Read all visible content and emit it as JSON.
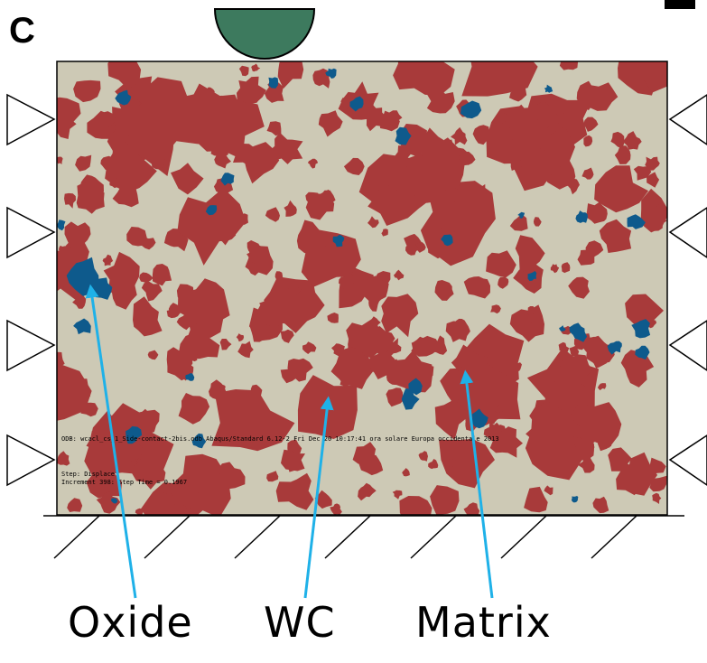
{
  "panel": {
    "letter": "C"
  },
  "labels": {
    "oxide": "Oxide",
    "wc": "WC",
    "matrix": "Matrix"
  },
  "simulation_text": {
    "odb_line": "ODB: wcacl_cs_1_Side-contact-2bis.odb    Abaqus/Standard 6.12-2    Fri Dec 20 10:17:41 ora solare Europa occidentale 2013",
    "step_line": "Step: Displace",
    "increment_line": "Increment    398: Step Time =    0.1967"
  },
  "colors": {
    "matrix": "#cdc9b5",
    "wc": "#a83a3a",
    "oxide": "#0e5a8c",
    "indenter": "#3d7a5e",
    "arrow": "#1fb1e8",
    "outline": "#000000"
  },
  "icons": {
    "indenter": "half-disc-indenter",
    "supports": "triangle-roller-support",
    "ground": "hatched-ground"
  }
}
